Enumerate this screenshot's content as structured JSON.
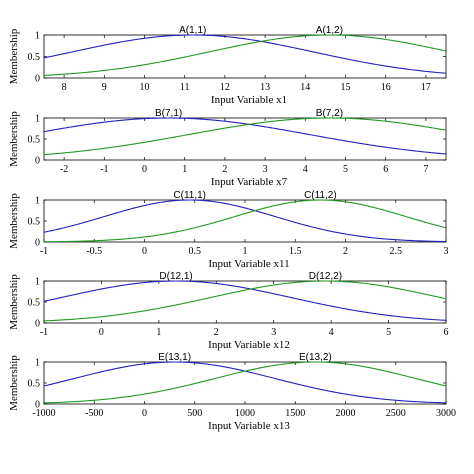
{
  "chart_data": [
    {
      "type": "line",
      "xlabel": "Input Variable x1",
      "ylabel": "Membership",
      "xlim": [
        7.5,
        17.5
      ],
      "ylim": [
        0,
        1
      ],
      "xticks": [
        8,
        9,
        10,
        11,
        12,
        13,
        14,
        15,
        16,
        17
      ],
      "yticks": [
        0,
        0.5,
        1
      ],
      "series": [
        {
          "name": "A(1,1)",
          "shape": "gaussian",
          "center": 11.2,
          "sigma": 3.0,
          "color": "#2222bb"
        },
        {
          "name": "A(1,2)",
          "shape": "gaussian",
          "center": 14.6,
          "sigma": 3.0,
          "color": "#229922"
        }
      ]
    },
    {
      "type": "line",
      "xlabel": "Input Variable x7",
      "ylabel": "Membership",
      "xlim": [
        -2.5,
        7.5
      ],
      "ylim": [
        0,
        1
      ],
      "xticks": [
        -2,
        -1,
        0,
        1,
        2,
        3,
        4,
        5,
        6,
        7
      ],
      "yticks": [
        0,
        0.5,
        1
      ],
      "series": [
        {
          "name": "B(7,1)",
          "shape": "gaussian",
          "center": 0.6,
          "sigma": 3.5,
          "color": "#2222bb"
        },
        {
          "name": "B(7,2)",
          "shape": "gaussian",
          "center": 4.6,
          "sigma": 3.5,
          "color": "#229922"
        }
      ]
    },
    {
      "type": "line",
      "xlabel": "Input Variable x11",
      "ylabel": "Membership",
      "xlim": [
        -1,
        3
      ],
      "ylim": [
        0,
        1
      ],
      "xticks": [
        -1,
        -0.5,
        0,
        0.5,
        1,
        1.5,
        2,
        2.5,
        3
      ],
      "yticks": [
        0,
        0.5,
        1
      ],
      "series": [
        {
          "name": "C(11,1)",
          "shape": "gaussian",
          "center": 0.45,
          "sigma": 0.85,
          "color": "#2222bb"
        },
        {
          "name": "C(11,2)",
          "shape": "gaussian",
          "center": 1.75,
          "sigma": 0.85,
          "color": "#229922"
        }
      ]
    },
    {
      "type": "line",
      "xlabel": "Input Variable x12",
      "ylabel": "Membership",
      "xlim": [
        -1,
        6
      ],
      "ylim": [
        0,
        1
      ],
      "xticks": [
        -1,
        0,
        1,
        2,
        3,
        4,
        5,
        6
      ],
      "yticks": [
        0,
        0.5,
        1
      ],
      "series": [
        {
          "name": "D(12,1)",
          "shape": "gaussian",
          "center": 1.3,
          "sigma": 2.0,
          "color": "#2222bb"
        },
        {
          "name": "D(12,2)",
          "shape": "gaussian",
          "center": 3.9,
          "sigma": 2.0,
          "color": "#229922"
        }
      ]
    },
    {
      "type": "line",
      "xlabel": "Input Variable x13",
      "ylabel": "Membership",
      "xlim": [
        -1000,
        3000
      ],
      "ylim": [
        0,
        1
      ],
      "xticks": [
        -1000,
        -500,
        0,
        500,
        1000,
        1500,
        2000,
        2500,
        3000
      ],
      "yticks": [
        0,
        0.5,
        1
      ],
      "series": [
        {
          "name": "E(13,1)",
          "shape": "gaussian",
          "center": 300,
          "sigma": 1000,
          "color": "#2222bb"
        },
        {
          "name": "E(13,2)",
          "shape": "gaussian",
          "center": 1700,
          "sigma": 1000,
          "color": "#229922"
        }
      ]
    }
  ]
}
